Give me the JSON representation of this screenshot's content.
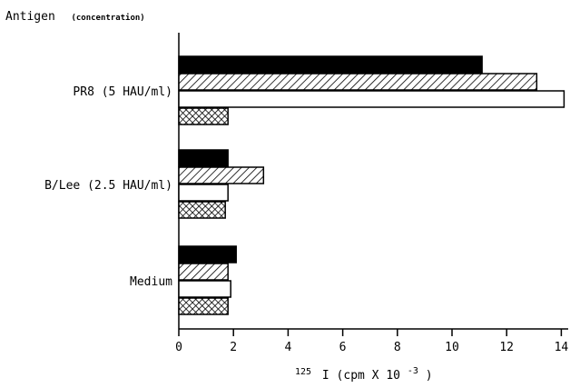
{
  "chart_data": {
    "type": "bar",
    "orientation": "horizontal",
    "ylabel": "Antigen",
    "ylabel_note": "(concentration)",
    "xlabel_prefix": "125",
    "xlabel_main": "I (cpm X 10",
    "xlabel_exp": "-3",
    "xlabel_suffix": ")",
    "xlim": [
      0,
      14.5
    ],
    "xticks": [
      "0",
      "2",
      "4",
      "6",
      "8",
      "10",
      "12",
      "14"
    ],
    "grid": false,
    "categories": [
      "PR8 (5 HAU/ml)",
      "B/Lee (2.5 HAU/ml)",
      "Medium"
    ],
    "series": [
      {
        "fill": "solid",
        "values": [
          11.1,
          1.8,
          2.1
        ]
      },
      {
        "fill": "hatched",
        "values": [
          13.1,
          3.1,
          1.8
        ]
      },
      {
        "fill": "open",
        "values": [
          14.1,
          1.8,
          1.9
        ]
      },
      {
        "fill": "crosshatched",
        "values": [
          1.8,
          1.7,
          1.8
        ]
      }
    ]
  }
}
